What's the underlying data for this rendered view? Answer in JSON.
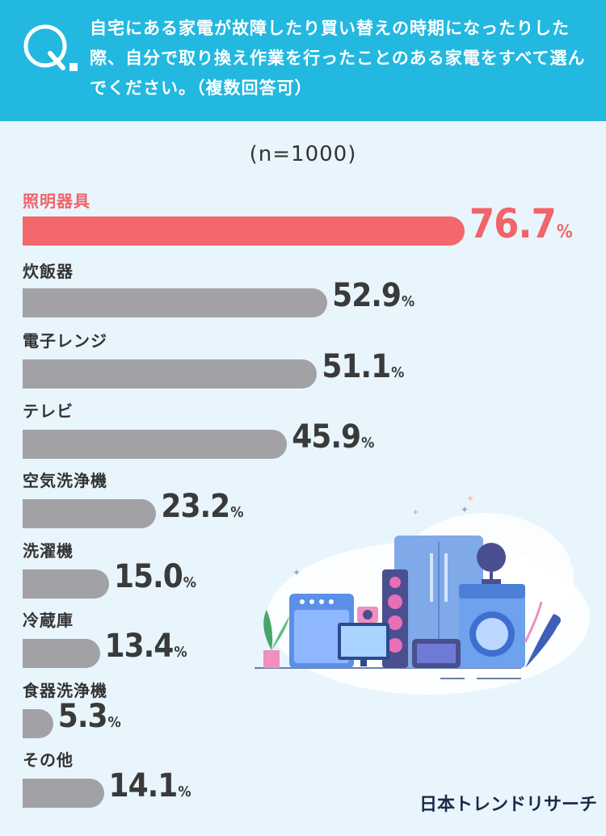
{
  "header": {
    "q_letter": "Q",
    "question": "自宅にある家電が故障したり買い替えの時期になったりした際、自分で取り換え作業を行ったことのある家電をすべて選んでください。（複数回答可）"
  },
  "sample_size": "(n=1000)",
  "colors": {
    "header": "#22b8e0",
    "highlight": "#f4676b",
    "bar": "#a2a2a6",
    "background": "#e8f5fc"
  },
  "chart_data": {
    "type": "bar",
    "orientation": "horizontal",
    "categories": [
      "照明器具",
      "炊飯器",
      "電子レンジ",
      "テレビ",
      "空気洗浄機",
      "洗濯機",
      "冷蔵庫",
      "食器洗浄機",
      "その他"
    ],
    "values": [
      76.7,
      52.9,
      51.1,
      45.9,
      23.2,
      15.0,
      13.4,
      5.3,
      14.1
    ],
    "value_labels": [
      "76.7",
      "52.9",
      "51.1",
      "45.9",
      "23.2",
      "15.0",
      "13.4",
      "5.3",
      "14.1"
    ],
    "unit": "%",
    "highlight_index": 0,
    "grid": false,
    "legend": "none"
  },
  "brand": {
    "logo_text": "日本トレンドリサーチ"
  }
}
